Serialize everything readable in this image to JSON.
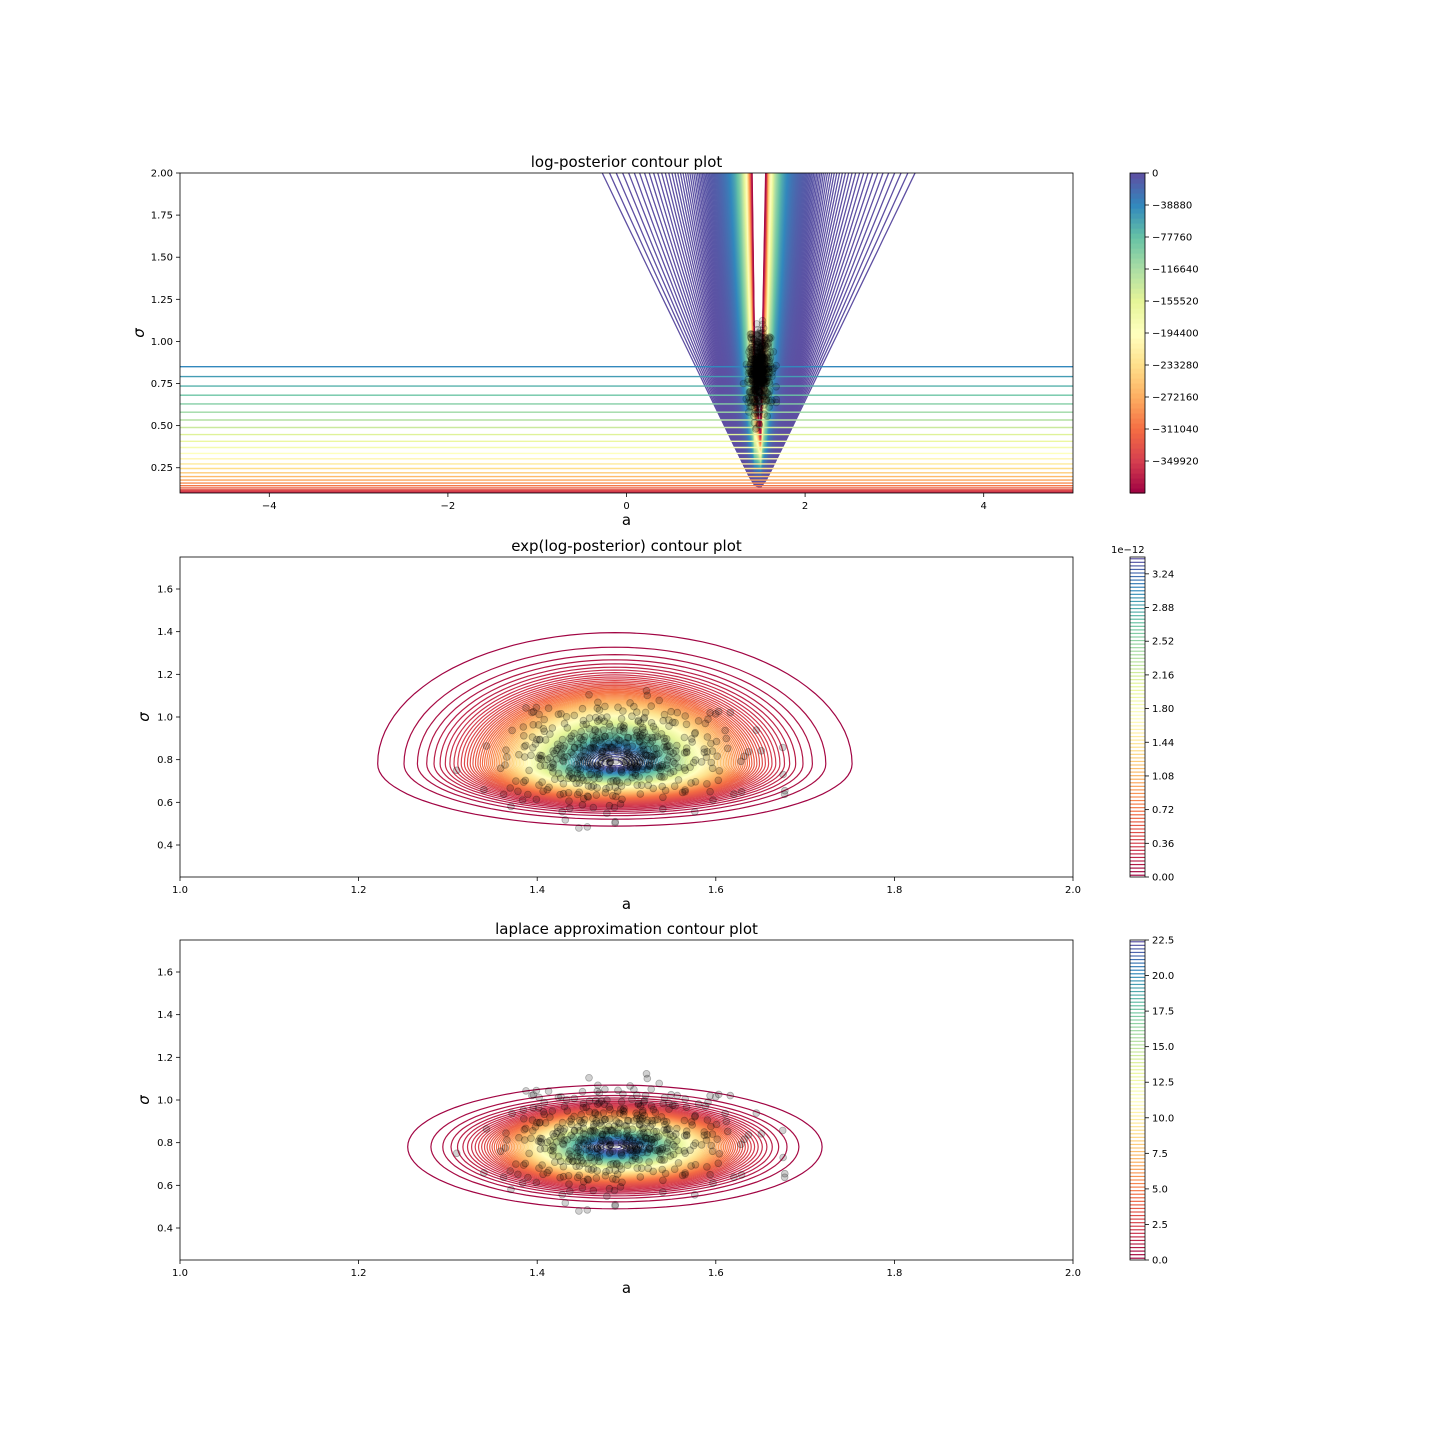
{
  "figure": {
    "background": "#ffffff"
  },
  "colormap": {
    "name": "Spectral",
    "stops": [
      "#9e0142",
      "#d53e4f",
      "#f46d43",
      "#fdae61",
      "#fee08b",
      "#ffffbf",
      "#e6f598",
      "#abdda4",
      "#66c2a5",
      "#3288bd",
      "#5e4fa2"
    ]
  },
  "samples_color": "#000000",
  "chart_data": [
    {
      "type": "contour",
      "title": "log-posterior contour plot",
      "xlabel": "a",
      "ylabel": "σ",
      "xlim": [
        -5,
        5
      ],
      "ylim": [
        0.1,
        2.0
      ],
      "xticks": [
        -4,
        -2,
        0,
        2,
        4
      ],
      "xtick_labels": [
        "−4",
        "−2",
        "0",
        "2",
        "4"
      ],
      "yticks": [
        0.25,
        0.5,
        0.75,
        1.0,
        1.25,
        1.5,
        1.75,
        2.0
      ],
      "ytick_labels": [
        "0.25",
        "0.50",
        "0.75",
        "1.00",
        "1.25",
        "1.50",
        "1.75",
        "2.00"
      ],
      "filled": false,
      "mode": "fan",
      "mode_location": {
        "a": 1.48,
        "sigma": 0.12
      },
      "level_range": [
        -388800,
        0
      ],
      "colorbar": {
        "ticks": [
          0,
          -38880,
          -77760,
          -116640,
          -155520,
          -194400,
          -233280,
          -272160,
          -311040,
          -349920
        ],
        "tick_labels": [
          "0",
          "−38880",
          "−77760",
          "−116640",
          "−155520",
          "−194400",
          "−233280",
          "−272160",
          "−311040",
          "−349920"
        ],
        "range": [
          -388800,
          0
        ],
        "style": "solid",
        "offset_text": ""
      },
      "samples": {
        "description": "posterior samples (a, σ)",
        "count": 500,
        "a_mean": 1.49,
        "a_sd": 0.06,
        "sigma_mean": 0.82,
        "sigma_sd": 0.12,
        "opacity": 0.15,
        "seed": 7
      }
    },
    {
      "type": "contour",
      "title": "exp(log-posterior) contour plot",
      "xlabel": "a",
      "ylabel": "σ",
      "xlim": [
        1.0,
        2.0
      ],
      "ylim": [
        0.25,
        1.75
      ],
      "xticks": [
        1.0,
        1.2,
        1.4,
        1.6,
        1.8,
        2.0
      ],
      "xtick_labels": [
        "1.0",
        "1.2",
        "1.4",
        "1.6",
        "1.8",
        "2.0"
      ],
      "yticks": [
        0.4,
        0.6,
        0.8,
        1.0,
        1.2,
        1.4,
        1.6
      ],
      "ytick_labels": [
        "0.4",
        "0.6",
        "0.8",
        "1.0",
        "1.2",
        "1.4",
        "1.6"
      ],
      "filled": false,
      "mode": "skewed",
      "center": {
        "a": 1.487,
        "sigma": 0.78
      },
      "spread": {
        "a": 0.082,
        "sigma_low": 0.09,
        "sigma_high": 0.19
      },
      "num_levels": 95,
      "level_range": [
        0,
        3.42
      ],
      "colorbar": {
        "ticks": [
          0.0,
          0.36,
          0.72,
          1.08,
          1.44,
          1.8,
          2.16,
          2.52,
          2.88,
          3.24
        ],
        "tick_labels": [
          "0.00",
          "0.36",
          "0.72",
          "1.08",
          "1.44",
          "1.80",
          "2.16",
          "2.52",
          "2.88",
          "3.24"
        ],
        "range": [
          0,
          3.42
        ],
        "style": "lines",
        "offset_text": "1e−12"
      },
      "samples": {
        "description": "posterior samples (a, σ)",
        "count": 500,
        "a_mean": 1.49,
        "a_sd": 0.06,
        "sigma_mean": 0.82,
        "sigma_sd": 0.12,
        "opacity": 0.18,
        "seed": 7
      }
    },
    {
      "type": "contour",
      "title": "laplace approximation contour plot",
      "xlabel": "a",
      "ylabel": "σ",
      "xlim": [
        1.0,
        2.0
      ],
      "ylim": [
        0.25,
        1.75
      ],
      "xticks": [
        1.0,
        1.2,
        1.4,
        1.6,
        1.8,
        2.0
      ],
      "xtick_labels": [
        "1.0",
        "1.2",
        "1.4",
        "1.6",
        "1.8",
        "2.0"
      ],
      "yticks": [
        0.4,
        0.6,
        0.8,
        1.0,
        1.2,
        1.4,
        1.6
      ],
      "ytick_labels": [
        "0.4",
        "0.6",
        "0.8",
        "1.0",
        "1.2",
        "1.4",
        "1.6"
      ],
      "filled": false,
      "mode": "gaussian",
      "center": {
        "a": 1.487,
        "sigma": 0.78
      },
      "spread": {
        "a": 0.072,
        "sigma_low": 0.09,
        "sigma_high": 0.09
      },
      "num_levels": 90,
      "level_range": [
        0,
        22.5
      ],
      "colorbar": {
        "ticks": [
          0.0,
          2.5,
          5.0,
          7.5,
          10.0,
          12.5,
          15.0,
          17.5,
          20.0,
          22.5
        ],
        "tick_labels": [
          "0.0",
          "2.5",
          "5.0",
          "7.5",
          "10.0",
          "12.5",
          "15.0",
          "17.5",
          "20.0",
          "22.5"
        ],
        "range": [
          0,
          22.5
        ],
        "style": "lines",
        "offset_text": ""
      },
      "samples": {
        "description": "posterior samples (a, σ)",
        "count": 500,
        "a_mean": 1.49,
        "a_sd": 0.06,
        "sigma_mean": 0.82,
        "sigma_sd": 0.12,
        "opacity": 0.18,
        "seed": 7
      }
    }
  ]
}
